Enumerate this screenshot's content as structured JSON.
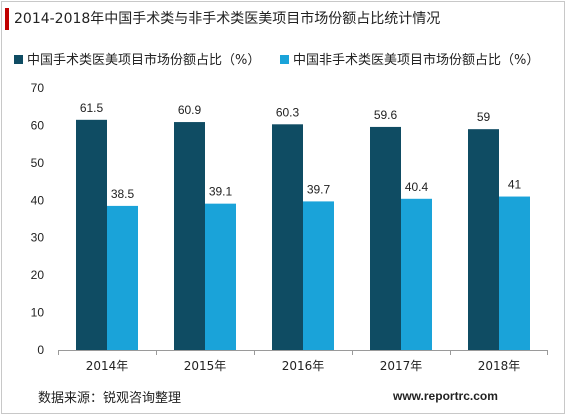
{
  "title": "2014-2018年中国手术类与非手术类医美项目市场份额占比统计情况",
  "source_text": "数据来源：锐观咨询整理",
  "website_text": "www.reportrc.com",
  "colors": {
    "accent": "#c00000",
    "series1": "#0f4c63",
    "series2": "#1aa3d9",
    "axis": "#9a9a9a",
    "text": "#222222"
  },
  "chart_data": {
    "type": "bar",
    "title": "2014-2018年中国手术类与非手术类医美项目市场份额占比统计情况",
    "categories": [
      "2014年",
      "2015年",
      "2016年",
      "2017年",
      "2018年"
    ],
    "series": [
      {
        "name": "中国手术类医美项目市场份额占比（%）",
        "values": [
          61.5,
          60.9,
          60.3,
          59.6,
          59
        ],
        "labels": [
          "61.5",
          "60.9",
          "60.3",
          "59.6",
          "59"
        ]
      },
      {
        "name": "中国非手术类医美项目市场份额占比（%）",
        "values": [
          38.5,
          39.1,
          39.7,
          40.4,
          41
        ],
        "labels": [
          "38.5",
          "39.1",
          "39.7",
          "40.4",
          "41"
        ]
      }
    ],
    "ylim": [
      0,
      70
    ],
    "yticks": [
      "0",
      "10",
      "20",
      "30",
      "40",
      "50",
      "60",
      "70"
    ],
    "grid": false,
    "legend_position": "top"
  }
}
